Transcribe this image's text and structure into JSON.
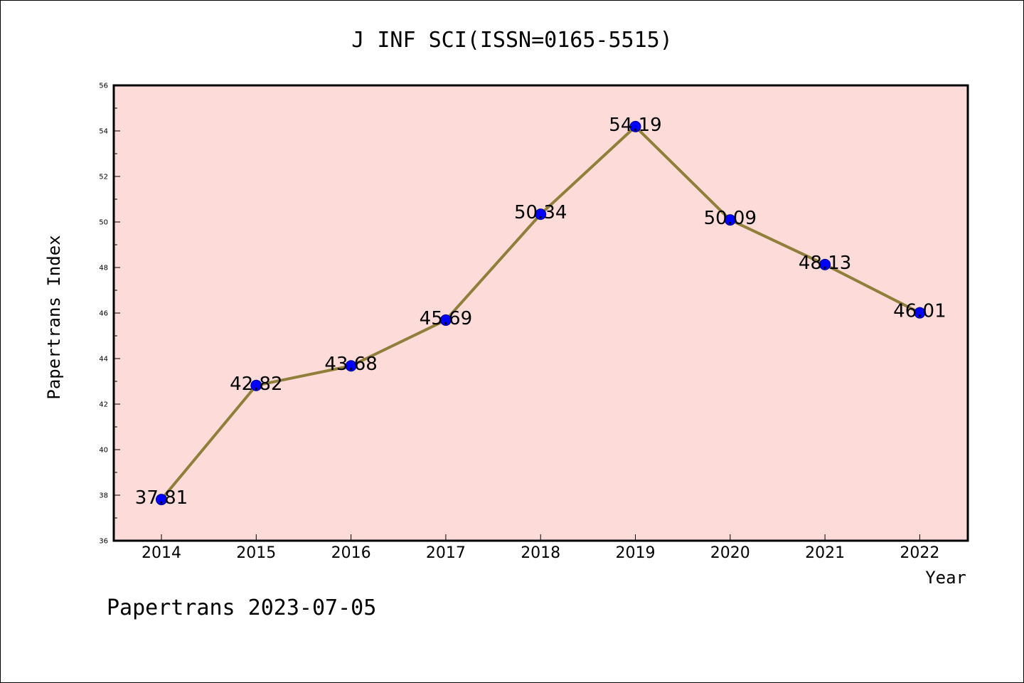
{
  "footer_text": "Papertrans 2023-07-05",
  "colors": {
    "plot_background": "#fddbd8",
    "line": "#8f7f3a",
    "marker": "#0000ff"
  },
  "chart_data": {
    "type": "line",
    "title": "J INF SCI(ISSN=0165-5515)",
    "xlabel": "Year",
    "ylabel": "Papertrans Index",
    "categories": [
      "2014",
      "2015",
      "2016",
      "2017",
      "2018",
      "2019",
      "2020",
      "2021",
      "2022"
    ],
    "series": [
      {
        "values": [
          37.81,
          42.82,
          43.68,
          45.69,
          50.34,
          54.19,
          50.09,
          48.13,
          46.01
        ],
        "labels": [
          "37.81",
          "42.82",
          "43.68",
          "45.69",
          "50.34",
          "54.19",
          "50.09",
          "48.13",
          "46.01"
        ]
      }
    ],
    "ylim": [
      36,
      56
    ],
    "yticks": [
      36,
      38,
      40,
      42,
      44,
      46,
      48,
      50,
      52,
      54,
      56
    ],
    "grid": false,
    "legend": "none"
  }
}
